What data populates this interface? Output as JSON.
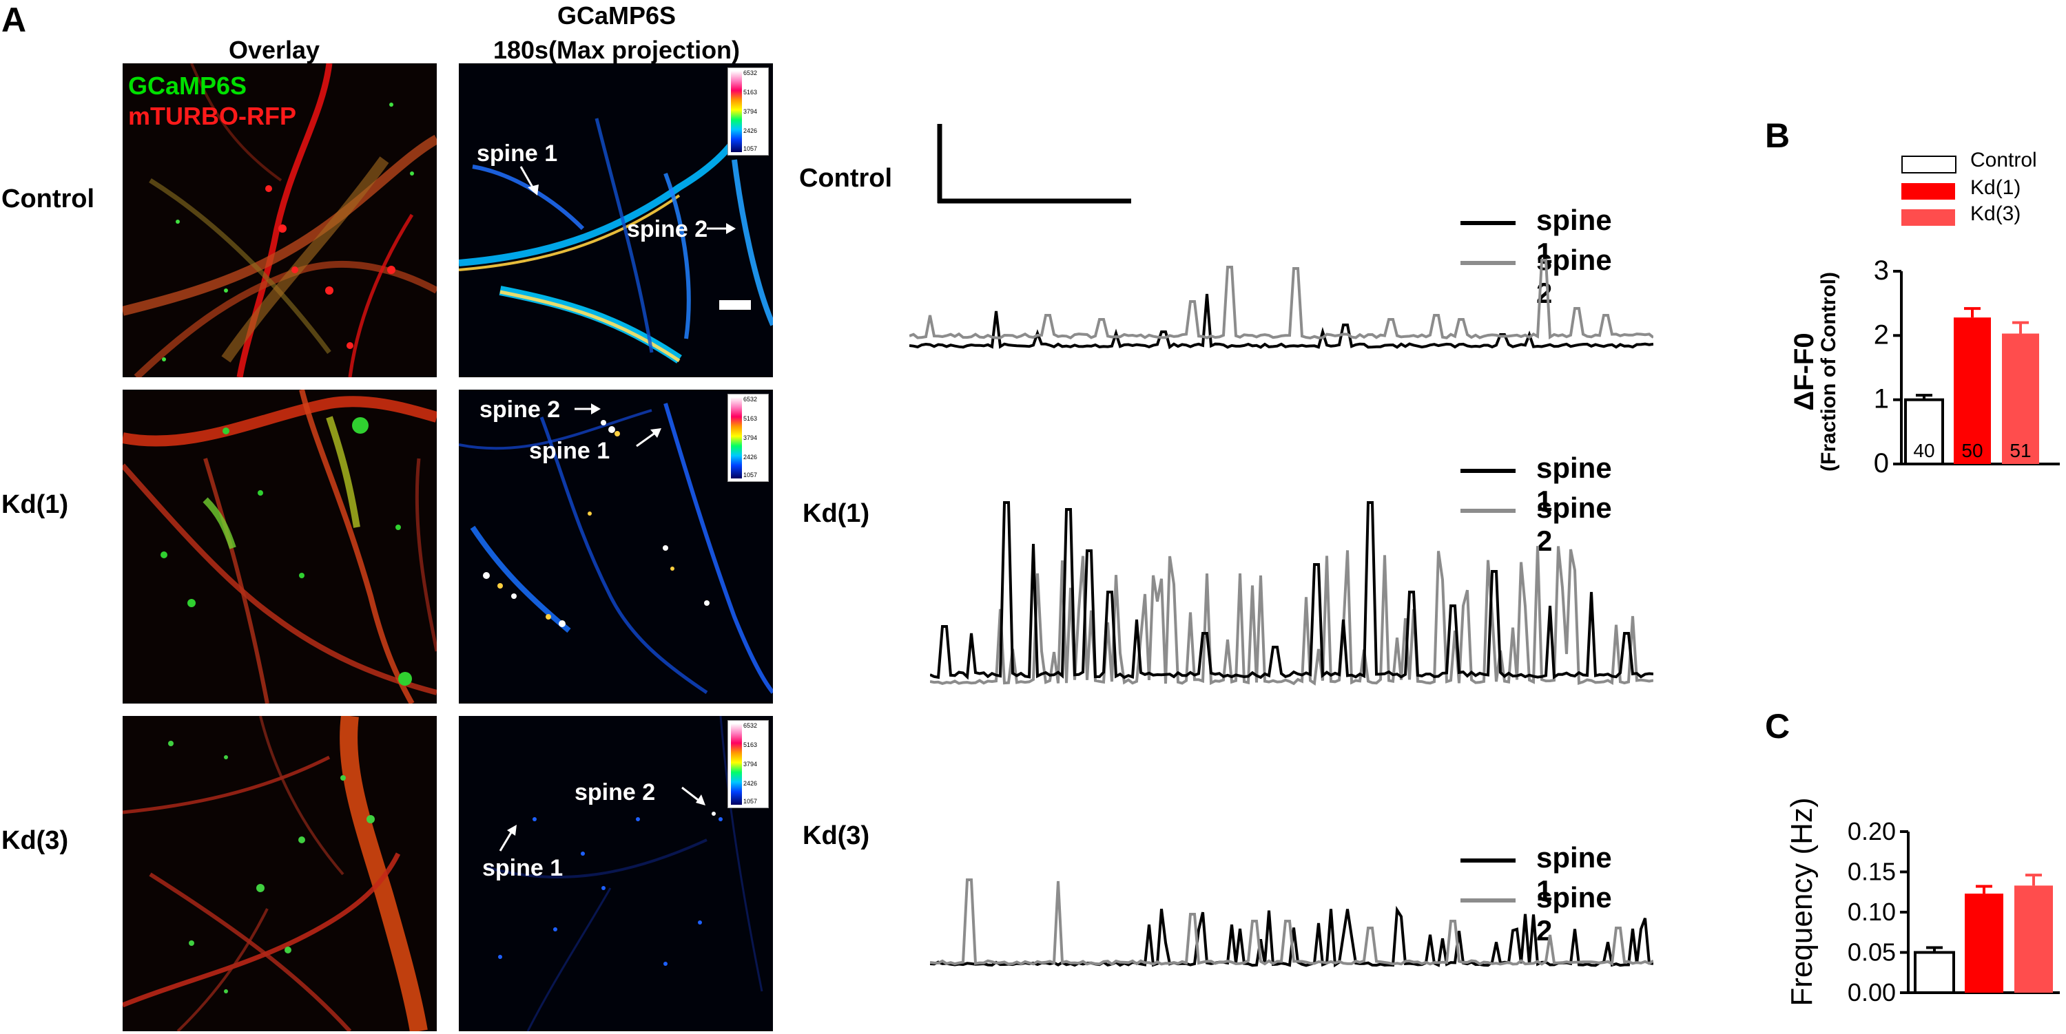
{
  "panel_labels": {
    "a": "A",
    "b": "B",
    "c": "C"
  },
  "columns": {
    "overlay": "Overlay",
    "gcamp_line1": "GCaMP6S",
    "gcamp_line2": "180s(Max projection)"
  },
  "overlay_legend": {
    "green": "GCaMP6S",
    "red": "mTURBO-RFP",
    "green_color": "#00e000",
    "red_color": "#ff1a1a"
  },
  "rows": [
    {
      "label": "Control",
      "trace_label": "Control"
    },
    {
      "label": "Kd(1)",
      "trace_label": "Kd(1)"
    },
    {
      "label": "Kd(3)",
      "trace_label": "Kd(3)"
    }
  ],
  "spine_labels": {
    "control": {
      "s1": "spine 1",
      "s2": "spine 2"
    },
    "kd1": {
      "s1": "spine 1",
      "s2": "spine 2"
    },
    "kd3": {
      "s1": "spine 1",
      "s2": "spine 2"
    }
  },
  "colorbar_ticks": [
    "6532",
    "5163",
    "3794",
    "2426",
    "1057"
  ],
  "trace_legend": {
    "spine1": "spine 1",
    "spine2": "spine 2",
    "spine1_color": "#000000",
    "spine2_color": "#8c8c8c"
  },
  "chart_data": [
    {
      "panel": "B",
      "type": "bar",
      "categories": [
        "Control",
        "Kd(1)",
        "Kd(3)"
      ],
      "values": [
        1.0,
        2.28,
        2.03
      ],
      "errors": [
        0.07,
        0.14,
        0.17
      ],
      "n_labels": [
        "40",
        "50",
        "51"
      ],
      "colors": [
        "#ffffff",
        "#ff0000",
        "#ff4d4d"
      ],
      "legend": [
        "Control",
        "Kd(1)",
        "Kd(3)"
      ],
      "ylabel": "ΔF-F0",
      "ylabel_sub": "(Fraction of Control)",
      "ylim": [
        0,
        3
      ],
      "yticks": [
        "0",
        "1",
        "2",
        "3"
      ]
    },
    {
      "panel": "C",
      "type": "bar",
      "categories": [
        "Control",
        "Kd(1)",
        "Kd(3)"
      ],
      "values": [
        0.05,
        0.123,
        0.133
      ],
      "errors": [
        0.006,
        0.009,
        0.013
      ],
      "colors": [
        "#ffffff",
        "#ff0000",
        "#ff4d4d"
      ],
      "ylabel": "Frequency (Hz)",
      "ylim": [
        0,
        0.2
      ],
      "yticks": [
        "0.00",
        "0.05",
        "0.10",
        "0.15",
        "0.20"
      ]
    }
  ]
}
